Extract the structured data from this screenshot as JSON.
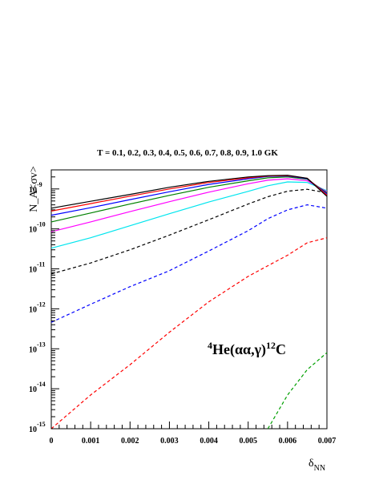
{
  "chart_data": {
    "type": "line",
    "title": "T = 0.1, 0.2, 0.3, 0.4, 0.5, 0.6, 0.7, 0.8, 0.9, 1.0 GK",
    "xlabel": {
      "main": "δ",
      "sub": "NN"
    },
    "ylabel": "N_A<σv>",
    "xlim": [
      0,
      0.007
    ],
    "ylim": [
      1e-15,
      3e-09
    ],
    "yscale": "log",
    "grid": false,
    "x_ticks": [
      "0",
      "0.001",
      "0.002",
      "0.003",
      "0.004",
      "0.005",
      "0.006",
      "0.007"
    ],
    "y_ticks": [
      {
        "base": "10",
        "exp": "-15"
      },
      {
        "base": "10",
        "exp": "-14"
      },
      {
        "base": "10",
        "exp": "-13"
      },
      {
        "base": "10",
        "exp": "-12"
      },
      {
        "base": "10",
        "exp": "-11"
      },
      {
        "base": "10",
        "exp": "-10"
      },
      {
        "base": "10",
        "exp": "-9"
      }
    ],
    "annotation": {
      "a": "4",
      "b": "He(αα,γ)",
      "c": "12",
      "d": "C"
    },
    "x": [
      0,
      0.001,
      0.002,
      0.003,
      0.004,
      0.005,
      0.0055,
      0.006,
      0.0065,
      0.007
    ],
    "series": [
      {
        "color": "#00a000",
        "dash": true,
        "values": [
          null,
          null,
          null,
          null,
          null,
          null,
          1e-15,
          7e-15,
          3e-14,
          8e-14
        ]
      },
      {
        "color": "#ff0000",
        "dash": true,
        "values": [
          1e-15,
          7e-15,
          4e-14,
          2.6e-13,
          1.5e-12,
          6.5e-12,
          1.2e-11,
          2.2e-11,
          4.5e-11,
          6e-11
        ]
      },
      {
        "color": "#0000ff",
        "dash": true,
        "values": [
          4.6e-13,
          1.3e-12,
          3.6e-12,
          9e-12,
          2.8e-11,
          9e-11,
          1.8e-10,
          3e-10,
          4e-10,
          3.3e-10
        ]
      },
      {
        "color": "#000000",
        "dash": true,
        "values": [
          7.5e-12,
          1.4e-11,
          3e-11,
          7e-11,
          1.7e-10,
          4.2e-10,
          6.4e-10,
          8.8e-10,
          9.8e-10,
          8e-10
        ]
      },
      {
        "color": "#00e5ee",
        "dash": false,
        "values": [
          3.3e-11,
          6e-11,
          1.2e-10,
          2.4e-10,
          4.7e-10,
          8.7e-10,
          1.2e-09,
          1.5e-09,
          1.45e-09,
          9e-10
        ]
      },
      {
        "color": "#ff00ff",
        "dash": false,
        "values": [
          8.5e-11,
          1.5e-10,
          2.7e-10,
          4.8e-10,
          8.3e-10,
          1.35e-09,
          1.65e-09,
          1.8e-09,
          1.6e-09,
          8.5e-10
        ]
      },
      {
        "color": "#008000",
        "dash": false,
        "values": [
          1.5e-10,
          2.5e-10,
          4.2e-10,
          6.9e-10,
          1.1e-09,
          1.6e-09,
          1.9e-09,
          2e-09,
          1.75e-09,
          8e-10
        ]
      },
      {
        "color": "#0000ff",
        "dash": false,
        "values": [
          2.2e-10,
          3.4e-10,
          5.4e-10,
          8.5e-10,
          1.3e-09,
          1.8e-09,
          2.05e-09,
          2.1e-09,
          1.8e-09,
          7.5e-10
        ]
      },
      {
        "color": "#ff0000",
        "dash": false,
        "values": [
          2.8e-10,
          4.3e-10,
          6.6e-10,
          1e-09,
          1.45e-09,
          1.9e-09,
          2.1e-09,
          2.15e-09,
          1.85e-09,
          7e-10
        ]
      },
      {
        "color": "#000000",
        "dash": false,
        "values": [
          3.3e-10,
          4.9e-10,
          7.3e-10,
          1.1e-09,
          1.55e-09,
          2e-09,
          2.15e-09,
          2.2e-09,
          1.85e-09,
          6.5e-10
        ]
      }
    ]
  }
}
